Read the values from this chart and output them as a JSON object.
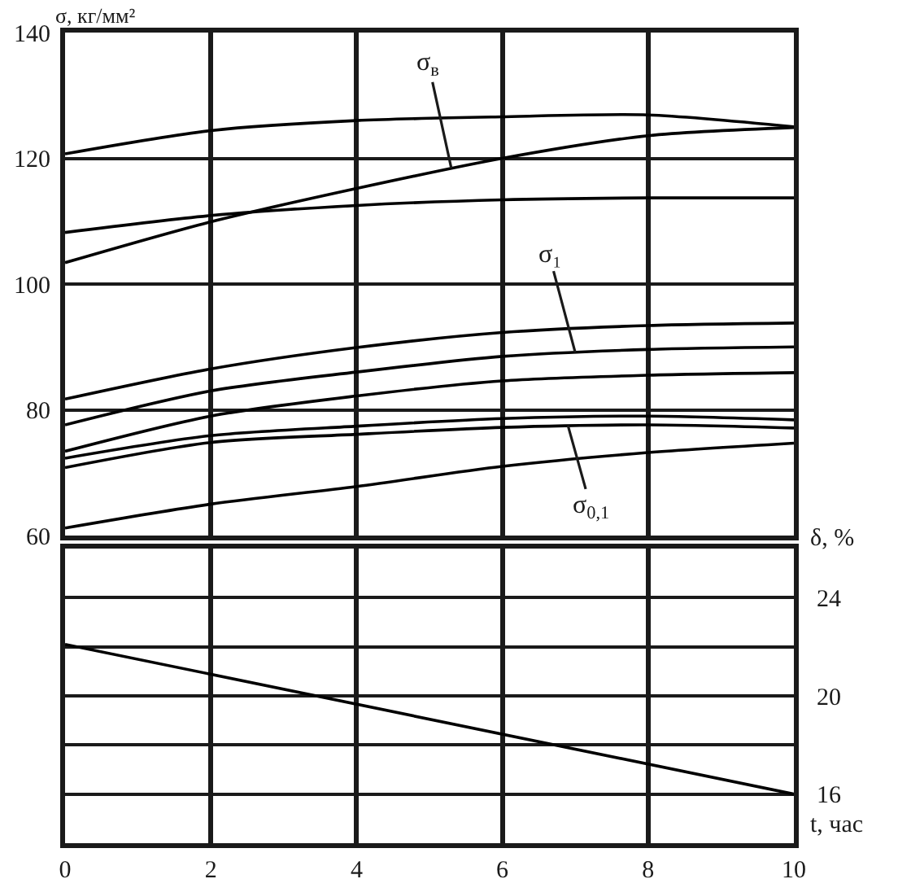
{
  "chart_data": [
    {
      "type": "line",
      "ylabel": "σ, кг/мм²",
      "x": [
        0,
        2,
        4,
        6,
        8,
        10
      ],
      "xlim": [
        0,
        10
      ],
      "xticks": [
        0,
        2,
        4,
        6,
        8,
        10
      ],
      "ylim": [
        60,
        140
      ],
      "yticks": [
        60,
        80,
        100,
        120,
        140
      ],
      "tick_labels": "y",
      "grid": true,
      "series": [
        {
          "color": "#000000",
          "values": [
            120.7,
            124.4,
            126.0,
            126.6,
            126.9,
            125.0
          ]
        },
        {
          "color": "#000000",
          "values": [
            103.4,
            109.9,
            115.2,
            120.0,
            123.6,
            124.9
          ]
        },
        {
          "color": "#000000",
          "values": [
            108.2,
            110.9,
            112.5,
            113.4,
            113.7,
            113.7
          ]
        },
        {
          "color": "#000000",
          "values": [
            81.7,
            86.5,
            89.9,
            92.3,
            93.4,
            93.8
          ]
        },
        {
          "color": "#000000",
          "values": [
            77.6,
            83.0,
            86.0,
            88.5,
            89.6,
            90.0
          ]
        },
        {
          "color": "#000000",
          "values": [
            73.4,
            79.0,
            82.2,
            84.6,
            85.5,
            85.9
          ]
        },
        {
          "color": "#000000",
          "values": [
            72.3,
            75.9,
            77.4,
            78.6,
            79.0,
            78.4
          ]
        },
        {
          "color": "#000000",
          "values": [
            70.8,
            74.8,
            76.1,
            77.2,
            77.6,
            77.1
          ]
        },
        {
          "color": "#000000",
          "values": [
            61.2,
            65.0,
            67.8,
            71.0,
            73.2,
            74.7
          ]
        }
      ],
      "annotations": [
        {
          "text": "σ$_{в}$",
          "x": 5.3,
          "y": 118.4
        },
        {
          "text": "σ₁",
          "x": 7.0,
          "y": 89.1
        },
        {
          "text": "σ$_{0,1}$",
          "x": 6.9,
          "y": 77.5
        }
      ]
    },
    {
      "type": "line",
      "xlabel": "t, час",
      "y2label": "δ, %",
      "x": [
        0,
        10
      ],
      "xlim": [
        0,
        10
      ],
      "xticks": [
        0,
        2,
        4,
        6,
        8,
        10
      ],
      "y2lim": [
        14,
        26
      ],
      "y2ticks": [
        16,
        {
          "value": 18,
          "label": null
        },
        20,
        {
          "value": 22,
          "label": null
        },
        24
      ],
      "grid": true,
      "series": [
        {
          "axis": "y2",
          "color": "#000000",
          "values": [
            22.1,
            16.0
          ]
        }
      ]
    }
  ]
}
